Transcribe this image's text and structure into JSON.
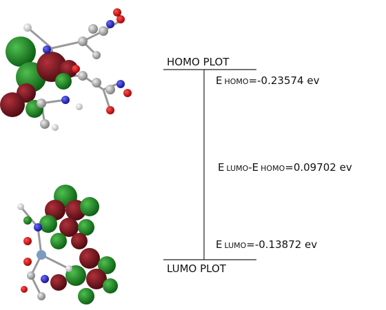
{
  "homo": {
    "label": "HOMO PLOT",
    "energy": {
      "symbol": "E",
      "subscript": "HOMO",
      "value": "=-0.23574 ev"
    }
  },
  "gap": {
    "symbol_1": "E",
    "subscript_1": "LUMO",
    "separator": "-E",
    "subscript_2": "HOMO",
    "value": "=0.09702 ev"
  },
  "lumo": {
    "label": "LUMO PLOT",
    "energy": {
      "symbol": "E",
      "subscript": "LUMO",
      "value": "=-0.13872 ev"
    }
  }
}
